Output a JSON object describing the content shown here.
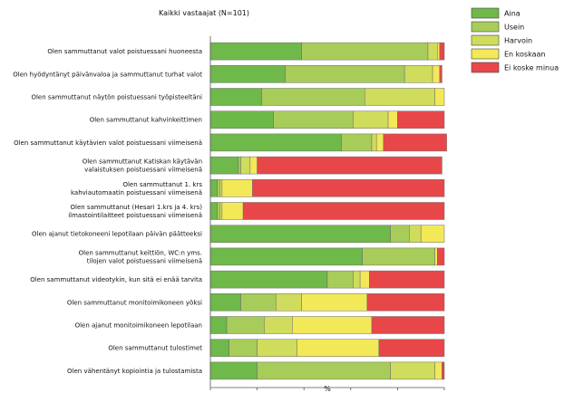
{
  "chart_data": {
    "type": "bar",
    "orientation": "horizontal",
    "stacked": true,
    "title": "Kaikki vastaajat (N=101)",
    "xlabel": "%",
    "ylabel": "",
    "xlim": [
      0,
      100
    ],
    "xticks": [
      "0",
      "20",
      "40",
      "60",
      "80",
      "100"
    ],
    "grid": false,
    "legend_position": "top-right",
    "categories": [
      [
        "Olen sammuttanut valot poistuessani huoneesta"
      ],
      [
        "Olen hyödyntänyt päivänvaloa ja sammuttanut turhat valot"
      ],
      [
        "Olen sammuttanut näytön poistuessani työpisteeltäni"
      ],
      [
        "Olen sammuttanut kahvinkeittimen"
      ],
      [
        "Olen sammuttanut käytävien valot poistuessani viimeisenä"
      ],
      [
        "Olen sammuttanut Katiskan käytävän",
        "valaistuksen poistuessani viimeisenä"
      ],
      [
        "Olen sammuttanut 1. krs",
        "kahviautomaatin poistuessani viimeisenä"
      ],
      [
        "Olen sammuttanut (Hesari 1.krs ja 4. krs)",
        "ilmastointilaitteet poistuessani viimeisenä"
      ],
      [
        "Olen ajanut tietokoneeni lepotilaan päivän päätteeksi"
      ],
      [
        "Olen sammuttanut keittiön, WC:n yms.",
        "tilojen valot poistuessani viimeisenä"
      ],
      [
        "Olen sammuttanut videotykin, kun sitä ei enää tarvita"
      ],
      [
        "Olen sammuttanut monitoimikoneen yöksi"
      ],
      [
        "Olen ajanut monitoimikoneen lepotilaan"
      ],
      [
        "Olen sammuttanut tulostimet"
      ],
      [
        "Olen vähentänyt kopiointia ja tulostamista"
      ]
    ],
    "series": [
      {
        "name": "Aina",
        "color": "#6fb84a",
        "values": [
          39,
          32,
          22,
          27,
          56,
          12,
          3,
          3,
          77,
          65,
          50,
          13,
          7,
          8,
          20
        ]
      },
      {
        "name": "Usein",
        "color": "#a8cc5a",
        "values": [
          54,
          51,
          44,
          34,
          13,
          1,
          1,
          1,
          8,
          31,
          11,
          15,
          16,
          12,
          57
        ]
      },
      {
        "name": "Harvoin",
        "color": "#cfdc5c",
        "values": [
          4,
          12,
          30,
          15,
          2,
          4,
          1,
          1,
          5,
          0,
          3,
          11,
          12,
          17,
          19
        ]
      },
      {
        "name": "En koskaan",
        "color": "#f3e858",
        "values": [
          1,
          3,
          4,
          4,
          3,
          3,
          13,
          9,
          10,
          1,
          4,
          28,
          34,
          35,
          3
        ]
      },
      {
        "name": "Ei koske minua",
        "color": "#e8474a",
        "values": [
          2,
          1,
          0,
          20,
          27,
          79,
          82,
          86,
          0,
          3,
          32,
          33,
          31,
          28,
          1
        ]
      }
    ]
  }
}
